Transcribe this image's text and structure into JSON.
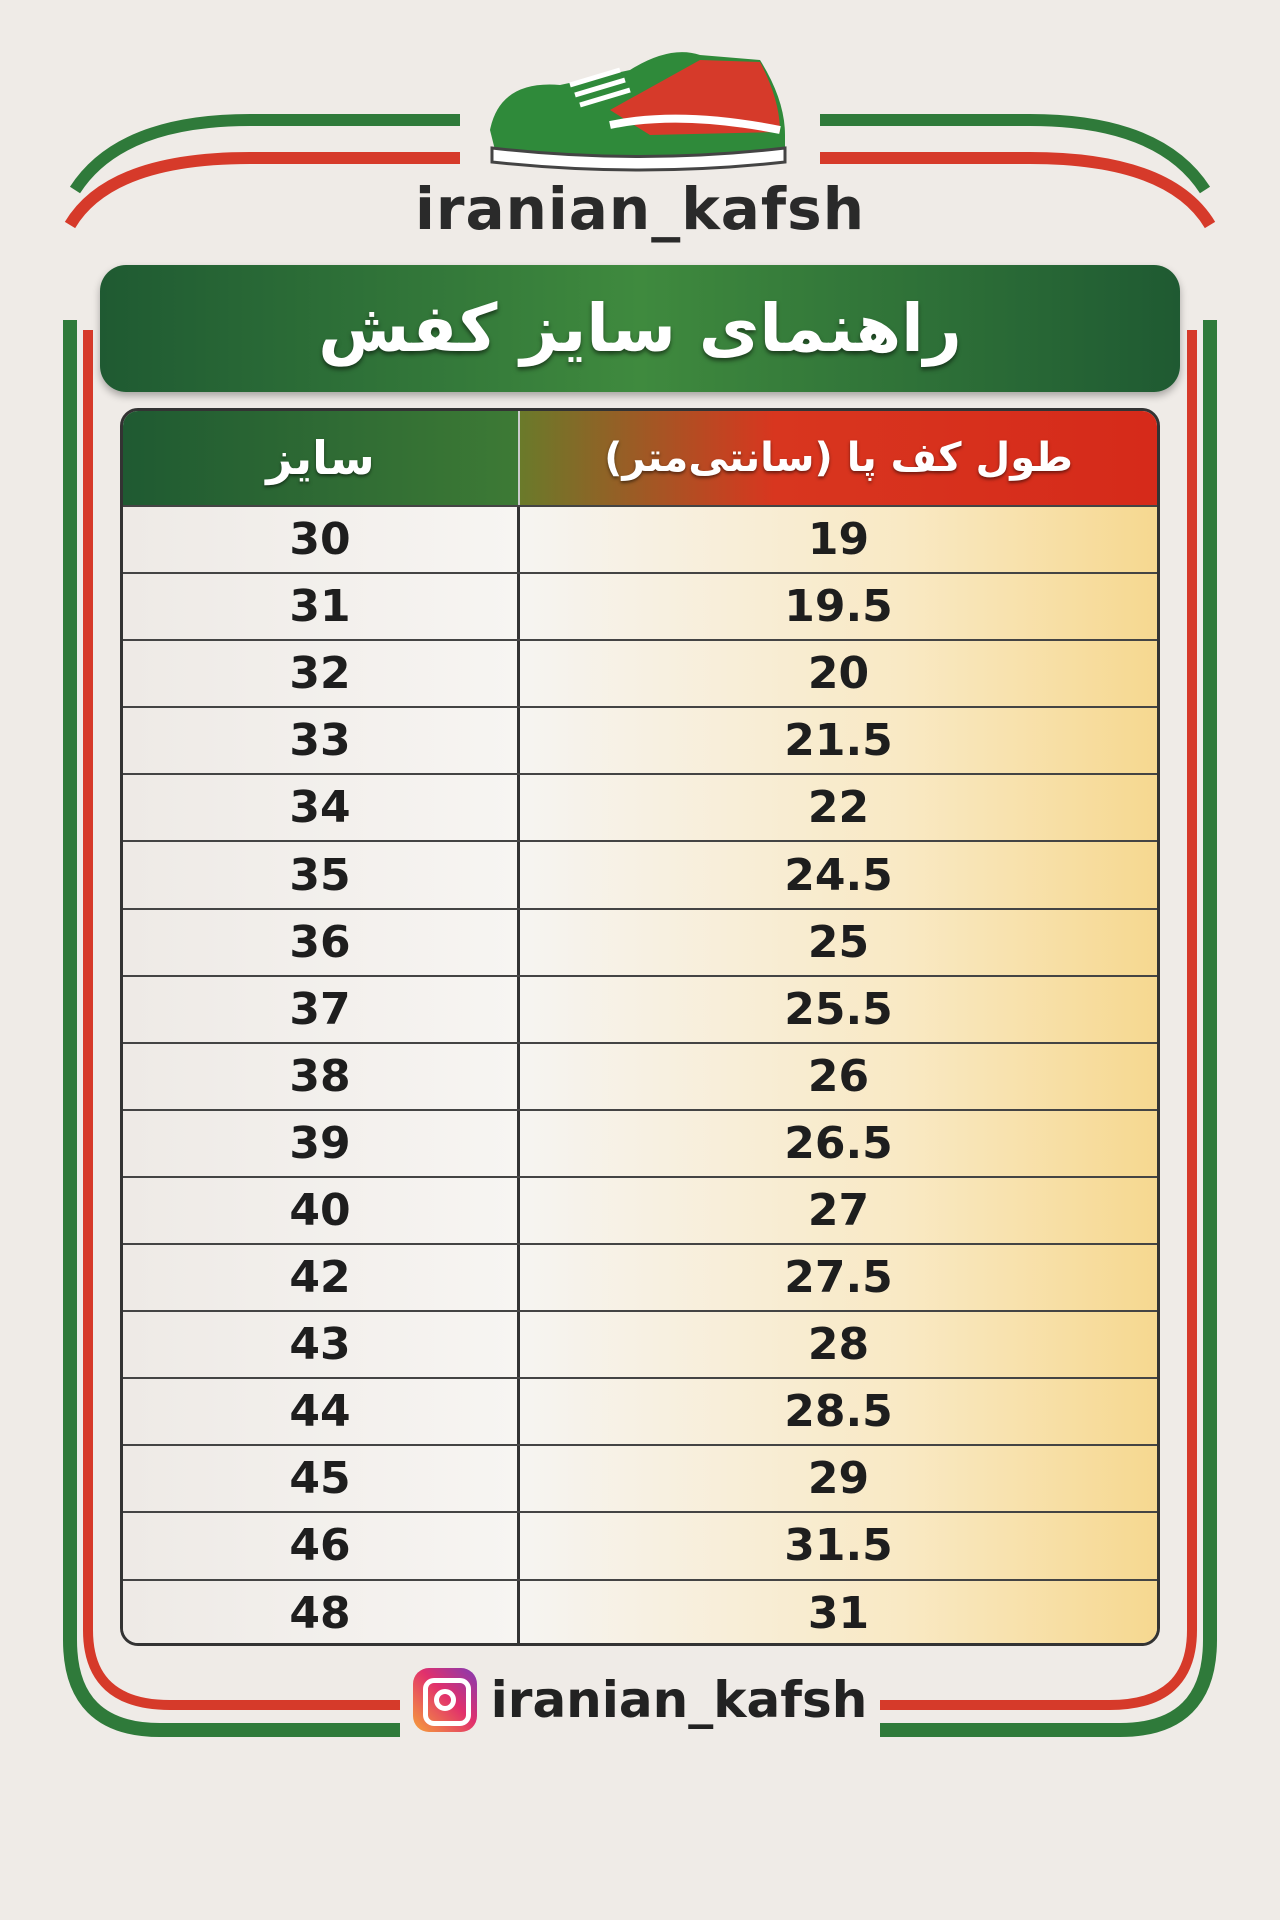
{
  "brand": "iranian_kafsh",
  "title": "راهنمای سایز کفش",
  "colors": {
    "green": "#1f5a32",
    "red": "#d62a1a",
    "white": "#ffffff"
  },
  "table": {
    "headers": {
      "size": "سایز",
      "length": "طول کف پا (سانتی‌متر)"
    },
    "rows": [
      {
        "size": "30",
        "length": "19"
      },
      {
        "size": "31",
        "length": "19.5"
      },
      {
        "size": "32",
        "length": "20"
      },
      {
        "size": "33",
        "length": "21.5"
      },
      {
        "size": "34",
        "length": "22"
      },
      {
        "size": "35",
        "length": "24.5"
      },
      {
        "size": "36",
        "length": "25"
      },
      {
        "size": "37",
        "length": "25.5"
      },
      {
        "size": "38",
        "length": "26"
      },
      {
        "size": "39",
        "length": "26.5"
      },
      {
        "size": "40",
        "length": "27"
      },
      {
        "size": "42",
        "length": "27.5"
      },
      {
        "size": "43",
        "length": "28"
      },
      {
        "size": "44",
        "length": "28.5"
      },
      {
        "size": "45",
        "length": "29"
      },
      {
        "size": "46",
        "length": "31.5"
      },
      {
        "size": "48",
        "length": "31"
      }
    ]
  },
  "footer": {
    "icon": "instagram-icon",
    "handle": "iranian_kafsh"
  }
}
